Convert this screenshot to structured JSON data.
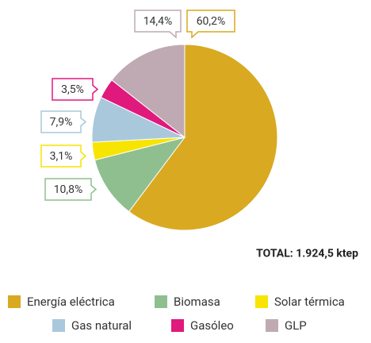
{
  "chart_data": {
    "type": "pie",
    "categories": [
      "Energía eléctrica",
      "Biomasa",
      "Solar térmica",
      "Gas natural",
      "Gasóleo",
      "GLP"
    ],
    "values": [
      60.2,
      10.8,
      3.1,
      7.9,
      3.5,
      14.4
    ],
    "value_labels": [
      "60,2%",
      "10,8%",
      "3,1%",
      "7,9%",
      "3,5%",
      "14,4%"
    ],
    "colors": [
      "#d9a921",
      "#8fbf8f",
      "#f7e400",
      "#a9c8dc",
      "#e0197d",
      "#bfaab4"
    ],
    "annotation": "TOTAL: 1.924,5 ktep"
  }
}
